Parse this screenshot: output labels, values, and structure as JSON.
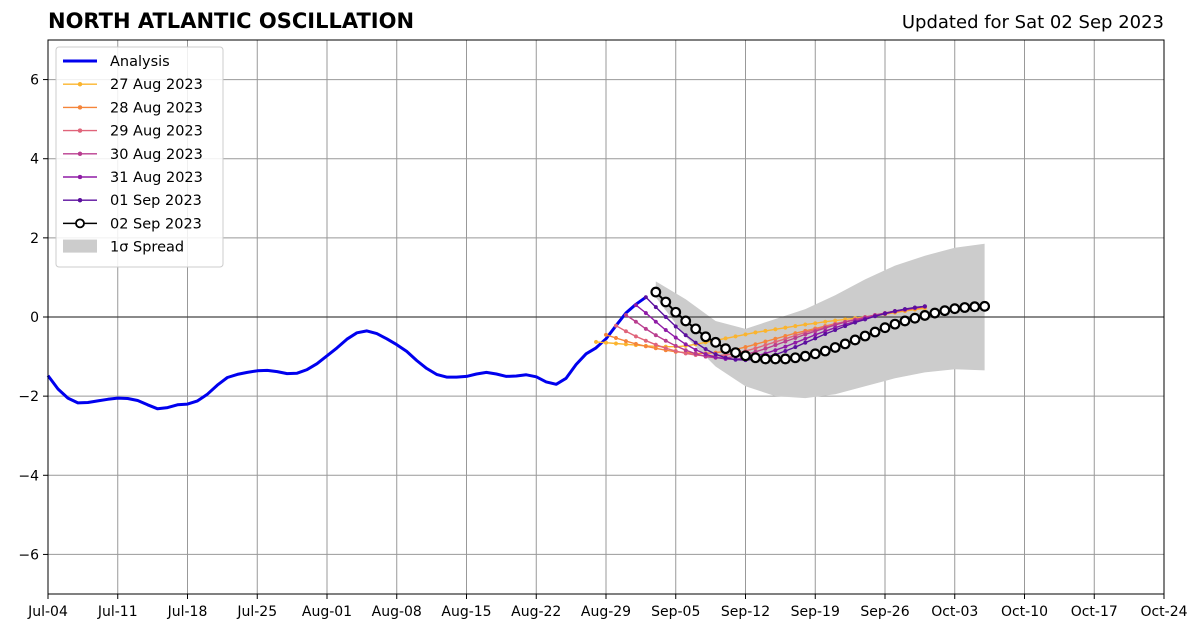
{
  "chart_data": {
    "type": "line",
    "title": "NORTH ATLANTIC OSCILLATION",
    "subtitle": "Updated for Sat 02 Sep 2023",
    "xlabel": "",
    "ylabel": "",
    "xlim": [
      "2023-07-04",
      "2023-10-24"
    ],
    "ylim": [
      -7,
      7
    ],
    "grid": true,
    "legend_position": "top-left",
    "x_ticks": [
      "Jul-04",
      "Jul-11",
      "Jul-18",
      "Jul-25",
      "Aug-01",
      "Aug-08",
      "Aug-15",
      "Aug-22",
      "Aug-29",
      "Sep-05",
      "Sep-12",
      "Sep-19",
      "Sep-26",
      "Oct-03",
      "Oct-10",
      "Oct-17",
      "Oct-24"
    ],
    "x_tick_dates": [
      "2023-07-04",
      "2023-07-11",
      "2023-07-18",
      "2023-07-25",
      "2023-08-01",
      "2023-08-08",
      "2023-08-15",
      "2023-08-22",
      "2023-08-29",
      "2023-09-05",
      "2023-09-12",
      "2023-09-19",
      "2023-09-26",
      "2023-10-03",
      "2023-10-10",
      "2023-10-17",
      "2023-10-24"
    ],
    "y_ticks": [
      {
        "value": -6,
        "label": "−6"
      },
      {
        "value": -4,
        "label": "−4"
      },
      {
        "value": -2,
        "label": "−2"
      },
      {
        "value": 0,
        "label": "0"
      },
      {
        "value": 2,
        "label": "2"
      },
      {
        "value": 4,
        "label": "4"
      },
      {
        "value": 6,
        "label": "6"
      }
    ],
    "zero_line": 0,
    "legend": [
      {
        "key": "analysis",
        "label": "Analysis"
      },
      {
        "key": "f0827",
        "label": "27 Aug 2023"
      },
      {
        "key": "f0828",
        "label": "28 Aug 2023"
      },
      {
        "key": "f0829",
        "label": "29 Aug 2023"
      },
      {
        "key": "f0830",
        "label": "30 Aug 2023"
      },
      {
        "key": "f0831",
        "label": "31 Aug 2023"
      },
      {
        "key": "f0901",
        "label": "01 Sep 2023"
      },
      {
        "key": "f0902",
        "label": "02 Sep 2023"
      },
      {
        "key": "spread",
        "label": "1σ Spread"
      }
    ],
    "spread": {
      "color": "#cccccc",
      "x": [
        "2023-09-03",
        "2023-09-06",
        "2023-09-09",
        "2023-09-12",
        "2023-09-15",
        "2023-09-18",
        "2023-09-21",
        "2023-09-24",
        "2023-09-27",
        "2023-09-30",
        "2023-10-03",
        "2023-10-06"
      ],
      "upper": [
        0.9,
        0.45,
        -0.1,
        -0.3,
        -0.05,
        0.2,
        0.55,
        0.95,
        1.3,
        1.55,
        1.75,
        1.85
      ],
      "lower": [
        0.5,
        -0.5,
        -1.25,
        -1.75,
        -2.0,
        -2.05,
        -1.95,
        -1.75,
        -1.55,
        -1.4,
        -1.32,
        -1.35
      ]
    },
    "series": [
      {
        "key": "analysis",
        "name": "Analysis",
        "color": "#0000ee",
        "x": [
          "2023-07-04",
          "2023-07-05",
          "2023-07-06",
          "2023-07-07",
          "2023-07-08",
          "2023-07-09",
          "2023-07-10",
          "2023-07-11",
          "2023-07-12",
          "2023-07-13",
          "2023-07-14",
          "2023-07-15",
          "2023-07-16",
          "2023-07-17",
          "2023-07-18",
          "2023-07-19",
          "2023-07-20",
          "2023-07-21",
          "2023-07-22",
          "2023-07-23",
          "2023-07-24",
          "2023-07-25",
          "2023-07-26",
          "2023-07-27",
          "2023-07-28",
          "2023-07-29",
          "2023-07-30",
          "2023-07-31",
          "2023-08-01",
          "2023-08-02",
          "2023-08-03",
          "2023-08-04",
          "2023-08-05",
          "2023-08-06",
          "2023-08-07",
          "2023-08-08",
          "2023-08-09",
          "2023-08-10",
          "2023-08-11",
          "2023-08-12",
          "2023-08-13",
          "2023-08-14",
          "2023-08-15",
          "2023-08-16",
          "2023-08-17",
          "2023-08-18",
          "2023-08-19",
          "2023-08-20",
          "2023-08-21",
          "2023-08-22",
          "2023-08-23",
          "2023-08-24",
          "2023-08-25",
          "2023-08-26",
          "2023-08-27",
          "2023-08-28",
          "2023-08-29",
          "2023-08-30",
          "2023-08-31",
          "2023-09-01",
          "2023-09-02"
        ],
        "values": [
          -1.48,
          -1.82,
          -2.05,
          -2.17,
          -2.16,
          -2.12,
          -2.08,
          -2.05,
          -2.06,
          -2.11,
          -2.22,
          -2.32,
          -2.29,
          -2.22,
          -2.2,
          -2.12,
          -1.95,
          -1.72,
          -1.53,
          -1.45,
          -1.4,
          -1.36,
          -1.35,
          -1.38,
          -1.43,
          -1.42,
          -1.33,
          -1.18,
          -0.98,
          -0.78,
          -0.56,
          -0.4,
          -0.35,
          -0.42,
          -0.55,
          -0.7,
          -0.87,
          -1.1,
          -1.3,
          -1.45,
          -1.52,
          -1.52,
          -1.5,
          -1.44,
          -1.4,
          -1.44,
          -1.5,
          -1.49,
          -1.46,
          -1.51,
          -1.64,
          -1.7,
          -1.55,
          -1.2,
          -0.93,
          -0.78,
          -0.55,
          -0.22,
          0.1,
          0.32,
          0.5
        ]
      },
      {
        "key": "f0827",
        "name": "27 Aug 2023",
        "color": "#fbb42d",
        "x": [
          "2023-08-28",
          "2023-08-29",
          "2023-08-30",
          "2023-08-31",
          "2023-09-01",
          "2023-09-02",
          "2023-09-03",
          "2023-09-04",
          "2023-09-05",
          "2023-09-06",
          "2023-09-07",
          "2023-09-08",
          "2023-09-09",
          "2023-09-10",
          "2023-09-11",
          "2023-09-12",
          "2023-09-13",
          "2023-09-14",
          "2023-09-15",
          "2023-09-16",
          "2023-09-17",
          "2023-09-18",
          "2023-09-19",
          "2023-09-20",
          "2023-09-21",
          "2023-09-22",
          "2023-09-23",
          "2023-09-24",
          "2023-09-25",
          "2023-09-26",
          "2023-09-27",
          "2023-09-28",
          "2023-09-29",
          "2023-09-30"
        ],
        "values": [
          -0.63,
          -0.65,
          -0.67,
          -0.69,
          -0.71,
          -0.73,
          -0.74,
          -0.75,
          -0.75,
          -0.73,
          -0.69,
          -0.64,
          -0.59,
          -0.54,
          -0.49,
          -0.44,
          -0.39,
          -0.35,
          -0.31,
          -0.27,
          -0.23,
          -0.19,
          -0.16,
          -0.12,
          -0.09,
          -0.06,
          -0.03,
          0.0,
          0.04,
          0.07,
          0.11,
          0.15,
          0.19,
          0.22
        ]
      },
      {
        "key": "f0828",
        "name": "28 Aug 2023",
        "color": "#f5853a",
        "x": [
          "2023-08-29",
          "2023-08-30",
          "2023-08-31",
          "2023-09-01",
          "2023-09-02",
          "2023-09-03",
          "2023-09-04",
          "2023-09-05",
          "2023-09-06",
          "2023-09-07",
          "2023-09-08",
          "2023-09-09",
          "2023-09-10",
          "2023-09-11",
          "2023-09-12",
          "2023-09-13",
          "2023-09-14",
          "2023-09-15",
          "2023-09-16",
          "2023-09-17",
          "2023-09-18",
          "2023-09-19",
          "2023-09-20",
          "2023-09-21",
          "2023-09-22",
          "2023-09-23",
          "2023-09-24",
          "2023-09-25",
          "2023-09-26",
          "2023-09-27",
          "2023-09-28",
          "2023-09-29",
          "2023-09-30"
        ],
        "values": [
          -0.45,
          -0.53,
          -0.61,
          -0.68,
          -0.74,
          -0.79,
          -0.84,
          -0.88,
          -0.9,
          -0.92,
          -0.92,
          -0.9,
          -0.87,
          -0.82,
          -0.76,
          -0.69,
          -0.62,
          -0.55,
          -0.48,
          -0.41,
          -0.35,
          -0.29,
          -0.23,
          -0.17,
          -0.12,
          -0.07,
          -0.02,
          0.03,
          0.08,
          0.13,
          0.17,
          0.21,
          0.25
        ]
      },
      {
        "key": "f0829",
        "name": "29 Aug 2023",
        "color": "#e0647a",
        "x": [
          "2023-08-30",
          "2023-08-31",
          "2023-09-01",
          "2023-09-02",
          "2023-09-03",
          "2023-09-04",
          "2023-09-05",
          "2023-09-06",
          "2023-09-07",
          "2023-09-08",
          "2023-09-09",
          "2023-09-10",
          "2023-09-11",
          "2023-09-12",
          "2023-09-13",
          "2023-09-14",
          "2023-09-15",
          "2023-09-16",
          "2023-09-17",
          "2023-09-18",
          "2023-09-19",
          "2023-09-20",
          "2023-09-21",
          "2023-09-22",
          "2023-09-23",
          "2023-09-24",
          "2023-09-25",
          "2023-09-26",
          "2023-09-27",
          "2023-09-28",
          "2023-09-29",
          "2023-09-30"
        ],
        "values": [
          -0.22,
          -0.36,
          -0.49,
          -0.6,
          -0.7,
          -0.79,
          -0.86,
          -0.92,
          -0.96,
          -0.98,
          -0.98,
          -0.96,
          -0.92,
          -0.86,
          -0.79,
          -0.71,
          -0.63,
          -0.55,
          -0.47,
          -0.39,
          -0.32,
          -0.25,
          -0.18,
          -0.12,
          -0.06,
          0.0,
          0.05,
          0.1,
          0.15,
          0.19,
          0.23,
          0.26
        ]
      },
      {
        "key": "f0830",
        "name": "30 Aug 2023",
        "color": "#b93d8f",
        "x": [
          "2023-08-31",
          "2023-09-01",
          "2023-09-02",
          "2023-09-03",
          "2023-09-04",
          "2023-09-05",
          "2023-09-06",
          "2023-09-07",
          "2023-09-08",
          "2023-09-09",
          "2023-09-10",
          "2023-09-11",
          "2023-09-12",
          "2023-09-13",
          "2023-09-14",
          "2023-09-15",
          "2023-09-16",
          "2023-09-17",
          "2023-09-18",
          "2023-09-19",
          "2023-09-20",
          "2023-09-21",
          "2023-09-22",
          "2023-09-23",
          "2023-09-24",
          "2023-09-25",
          "2023-09-26",
          "2023-09-27",
          "2023-09-28",
          "2023-09-29",
          "2023-09-30"
        ],
        "values": [
          0.05,
          -0.12,
          -0.3,
          -0.46,
          -0.6,
          -0.73,
          -0.84,
          -0.93,
          -1.0,
          -1.03,
          -1.03,
          -1.0,
          -0.95,
          -0.88,
          -0.8,
          -0.71,
          -0.62,
          -0.53,
          -0.44,
          -0.36,
          -0.28,
          -0.2,
          -0.13,
          -0.07,
          -0.01,
          0.05,
          0.1,
          0.15,
          0.19,
          0.23,
          0.27
        ]
      },
      {
        "key": "f0831",
        "name": "31 Aug 2023",
        "color": "#8f1ba6",
        "x": [
          "2023-09-01",
          "2023-09-02",
          "2023-09-03",
          "2023-09-04",
          "2023-09-05",
          "2023-09-06",
          "2023-09-07",
          "2023-09-08",
          "2023-09-09",
          "2023-09-10",
          "2023-09-11",
          "2023-09-12",
          "2023-09-13",
          "2023-09-14",
          "2023-09-15",
          "2023-09-16",
          "2023-09-17",
          "2023-09-18",
          "2023-09-19",
          "2023-09-20",
          "2023-09-21",
          "2023-09-22",
          "2023-09-23",
          "2023-09-24",
          "2023-09-25",
          "2023-09-26",
          "2023-09-27",
          "2023-09-28",
          "2023-09-29",
          "2023-09-30"
        ],
        "values": [
          0.3,
          0.1,
          -0.12,
          -0.33,
          -0.52,
          -0.69,
          -0.83,
          -0.94,
          -1.02,
          -1.06,
          -1.07,
          -1.04,
          -0.99,
          -0.92,
          -0.84,
          -0.75,
          -0.65,
          -0.55,
          -0.45,
          -0.36,
          -0.27,
          -0.19,
          -0.11,
          -0.04,
          0.02,
          0.08,
          0.14,
          0.19,
          0.23,
          0.27
        ]
      },
      {
        "key": "f0901",
        "name": "01 Sep 2023",
        "color": "#5b0f9e",
        "x": [
          "2023-09-02",
          "2023-09-03",
          "2023-09-04",
          "2023-09-05",
          "2023-09-06",
          "2023-09-07",
          "2023-09-08",
          "2023-09-09",
          "2023-09-10",
          "2023-09-11",
          "2023-09-12",
          "2023-09-13",
          "2023-09-14",
          "2023-09-15",
          "2023-09-16",
          "2023-09-17",
          "2023-09-18",
          "2023-09-19",
          "2023-09-20",
          "2023-09-21",
          "2023-09-22",
          "2023-09-23",
          "2023-09-24",
          "2023-09-25",
          "2023-09-26",
          "2023-09-27",
          "2023-09-28",
          "2023-09-29",
          "2023-09-30"
        ],
        "values": [
          0.5,
          0.25,
          0.0,
          -0.24,
          -0.46,
          -0.65,
          -0.81,
          -0.94,
          -1.03,
          -1.08,
          -1.09,
          -1.07,
          -1.02,
          -0.95,
          -0.86,
          -0.76,
          -0.65,
          -0.54,
          -0.43,
          -0.33,
          -0.23,
          -0.14,
          -0.06,
          0.02,
          0.09,
          0.15,
          0.2,
          0.24,
          0.27
        ]
      },
      {
        "key": "f0902",
        "name": "02 Sep 2023",
        "color": "#000000",
        "marker_fill": "#ffffff",
        "x": [
          "2023-09-03",
          "2023-09-04",
          "2023-09-05",
          "2023-09-06",
          "2023-09-07",
          "2023-09-08",
          "2023-09-09",
          "2023-09-10",
          "2023-09-11",
          "2023-09-12",
          "2023-09-13",
          "2023-09-14",
          "2023-09-15",
          "2023-09-16",
          "2023-09-17",
          "2023-09-18",
          "2023-09-19",
          "2023-09-20",
          "2023-09-21",
          "2023-09-22",
          "2023-09-23",
          "2023-09-24",
          "2023-09-25",
          "2023-09-26",
          "2023-09-27",
          "2023-09-28",
          "2023-09-29",
          "2023-09-30",
          "2023-10-01",
          "2023-10-02",
          "2023-10-03",
          "2023-10-04",
          "2023-10-05",
          "2023-10-06"
        ],
        "values": [
          0.63,
          0.38,
          0.12,
          -0.1,
          -0.3,
          -0.5,
          -0.64,
          -0.8,
          -0.9,
          -0.98,
          -1.03,
          -1.06,
          -1.06,
          -1.06,
          -1.03,
          -0.99,
          -0.93,
          -0.86,
          -0.77,
          -0.68,
          -0.58,
          -0.48,
          -0.38,
          -0.27,
          -0.18,
          -0.1,
          -0.03,
          0.04,
          0.1,
          0.16,
          0.21,
          0.24,
          0.26,
          0.27
        ]
      }
    ]
  }
}
